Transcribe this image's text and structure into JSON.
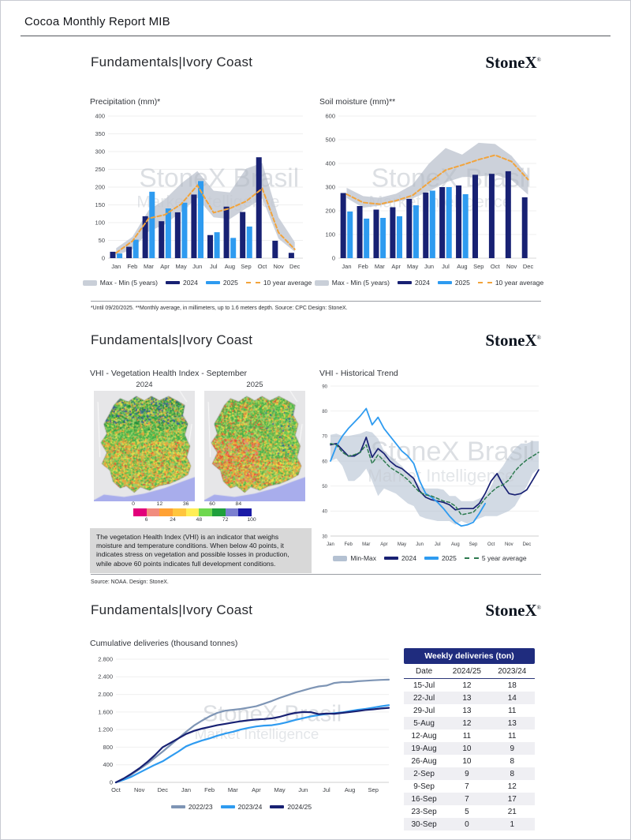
{
  "header": {
    "title": "Cocoa Monthly Report MIB"
  },
  "brand": {
    "logo": "StoneX",
    "reg": "®",
    "watermark1": "StoneX Brasil",
    "watermark2": "Market Intelligence"
  },
  "panel_title": "Fundamentals|Ivory Coast",
  "panel1": {
    "footnote": "*Until 09/20/2025. **Monthly average, in millimeters, up to 1.6 meters depth. Source: CPC  Design: StoneX."
  },
  "panel2": {
    "left_title": "VHI - Vegetation Health Index - September",
    "map_years": [
      "2024",
      "2025"
    ],
    "caption": "The vegetation Health Index (VHI) is an indicator that weighs moisture and temperature conditions. When below 40 points, it indicates stress on vegetation and possible losses in production, while above 60 points indicates full development conditions.",
    "source": "Source: NOAA. Design: StoneX.",
    "right_title": "VHI - Historical Trend"
  },
  "panel3": {
    "chart_title": "Cumulative deliveries (thousand tonnes)"
  },
  "colorbar": {
    "labels": [
      "0",
      "6",
      "12",
      "24",
      "36",
      "48",
      "60",
      "72",
      "84",
      "100"
    ],
    "colors": [
      "#e2007a",
      "#f18c7e",
      "#ffa133",
      "#ffc53d",
      "#ffee55",
      "#6fd84f",
      "#1fa03c",
      "#7b7fd0",
      "#1a1aa6"
    ]
  },
  "weekly_table": {
    "title": "Weekly deliveries (ton)",
    "columns": [
      "Date",
      "2024/25",
      "2023/24"
    ],
    "rows": [
      [
        "15-Jul",
        "12",
        "18"
      ],
      [
        "22-Jul",
        "13",
        "14"
      ],
      [
        "29-Jul",
        "13",
        "11"
      ],
      [
        "5-Aug",
        "12",
        "13"
      ],
      [
        "12-Aug",
        "11",
        "11"
      ],
      [
        "19-Aug",
        "10",
        "9"
      ],
      [
        "26-Aug",
        "10",
        "8"
      ],
      [
        "2-Sep",
        "9",
        "8"
      ],
      [
        "9-Sep",
        "7",
        "12"
      ],
      [
        "16-Sep",
        "7",
        "17"
      ],
      [
        "23-Sep",
        "5",
        "21"
      ],
      [
        "30-Sep",
        "0",
        "1"
      ]
    ]
  },
  "chart_data": [
    {
      "id": "precipitation",
      "type": "bar",
      "title": "Precipitation (mm)*",
      "categories": [
        "Jan",
        "Feb",
        "Mar",
        "Apr",
        "May",
        "Jun",
        "Jul",
        "Aug",
        "Sep",
        "Oct",
        "Nov",
        "Dec"
      ],
      "series": [
        {
          "name": "2024",
          "color": "#182173",
          "values": [
            18,
            32,
            118,
            104,
            129,
            179,
            65,
            145,
            130,
            284,
            49,
            15
          ]
        },
        {
          "name": "2025",
          "color": "#2e9bf0",
          "values": [
            13,
            52,
            187,
            140,
            156,
            217,
            73,
            57,
            89,
            null,
            null,
            null
          ]
        }
      ],
      "line": {
        "name": "10 year average",
        "color": "#f2a43c",
        "values": [
          15,
          48,
          112,
          122,
          152,
          205,
          128,
          140,
          160,
          196,
          72,
          25
        ]
      },
      "band": {
        "name": "Max - Min (5 years)",
        "color": "#c9cfd8",
        "upper": [
          28,
          60,
          135,
          165,
          210,
          245,
          190,
          185,
          252,
          268,
          115,
          45
        ],
        "lower": [
          8,
          25,
          75,
          95,
          130,
          170,
          115,
          110,
          140,
          168,
          55,
          18
        ]
      },
      "ylim": [
        0,
        400
      ],
      "yticks": [
        0,
        50,
        100,
        150,
        200,
        250,
        300,
        350,
        400
      ],
      "legend": [
        {
          "label": "Max - Min (5 years)",
          "swatch": "band",
          "color": "#c9cfd8"
        },
        {
          "label": "2024",
          "swatch": "line",
          "color": "#182173"
        },
        {
          "label": "2025",
          "swatch": "line",
          "color": "#2e9bf0"
        },
        {
          "label": "10 year average",
          "swatch": "dash",
          "color": "#f2a43c"
        }
      ]
    },
    {
      "id": "soil_moisture",
      "type": "bar",
      "title": "Soil moisture (mm)**",
      "categories": [
        "Jan",
        "Feb",
        "Mar",
        "Apr",
        "May",
        "Jun",
        "Jul",
        "Aug",
        "Sep",
        "Oct",
        "Nov",
        "Dec"
      ],
      "series": [
        {
          "name": "2024",
          "color": "#182173",
          "values": [
            275,
            220,
            205,
            215,
            250,
            277,
            300,
            307,
            352,
            356,
            367,
            257
          ]
        },
        {
          "name": "2025",
          "color": "#2e9bf0",
          "values": [
            197,
            167,
            170,
            177,
            223,
            285,
            300,
            270,
            null,
            null,
            null,
            null
          ]
        }
      ],
      "line": {
        "name": "10 year average",
        "color": "#f2a43c",
        "values": [
          270,
          235,
          228,
          243,
          265,
          320,
          372,
          393,
          416,
          435,
          408,
          332
        ]
      },
      "band": {
        "name": "Max - Min (5 years)",
        "color": "#c9cfd8",
        "upper": [
          297,
          262,
          255,
          272,
          310,
          400,
          465,
          437,
          487,
          482,
          432,
          347
        ],
        "lower": [
          254,
          213,
          222,
          238,
          252,
          282,
          320,
          342,
          345,
          352,
          330,
          268
        ]
      },
      "ylim": [
        0,
        600
      ],
      "yticks": [
        0,
        100,
        200,
        300,
        400,
        500,
        600
      ],
      "legend": [
        {
          "label": "Max - Min (5 years)",
          "swatch": "band",
          "color": "#c9cfd8"
        },
        {
          "label": "2024",
          "swatch": "line",
          "color": "#182173"
        },
        {
          "label": "2025",
          "swatch": "line",
          "color": "#2e9bf0"
        },
        {
          "label": "10 year average",
          "swatch": "dash",
          "color": "#f2a43c"
        }
      ]
    },
    {
      "id": "vhi_trend",
      "type": "line",
      "title": "VHI - Historical Trend",
      "x_labels": [
        "Jan",
        "Feb",
        "Mar",
        "Apr",
        "May",
        "Jun",
        "Jul",
        "Aug",
        "Sep",
        "Oct",
        "Nov",
        "Dec"
      ],
      "points_per_month": 3,
      "band": {
        "name": "Min-Max",
        "color": "#b4c1d2",
        "max": [
          70.5,
          71,
          70,
          70,
          70.5,
          71,
          72,
          71.5,
          69,
          64,
          62,
          60,
          58,
          55,
          53,
          50,
          49,
          49,
          49,
          48.5,
          46,
          46,
          44,
          44,
          44,
          45,
          46,
          50,
          55,
          58,
          62,
          65,
          67,
          67,
          68,
          68
        ],
        "min": [
          60,
          61,
          58,
          52,
          52,
          54,
          57,
          52,
          46,
          49,
          48,
          47,
          45,
          43,
          42,
          38,
          37,
          36.5,
          36,
          36,
          36,
          34.5,
          36,
          35,
          36,
          37,
          38,
          38,
          38,
          39,
          40,
          42,
          46,
          50,
          55,
          57
        ]
      },
      "series": [
        {
          "name": "2024",
          "color": "#182173",
          "width": 1.7,
          "dash": null,
          "values": [
            66.5,
            67,
            64.5,
            62,
            62,
            63.5,
            69.5,
            61.5,
            65,
            63,
            60,
            58,
            57,
            55,
            53,
            48,
            45.5,
            44.5,
            44,
            43.5,
            42.5,
            40.5,
            41,
            41,
            41,
            43,
            47,
            52,
            55,
            50.5,
            47,
            46.5,
            47,
            48.5,
            52.5,
            56.5
          ]
        },
        {
          "name": "2025",
          "color": "#2e9bf0",
          "width": 1.8,
          "dash": null,
          "values": [
            60,
            66,
            70,
            73,
            75.5,
            78,
            81,
            74.5,
            77.5,
            73,
            70,
            67,
            64,
            62,
            59,
            52,
            47,
            45.5,
            43.5,
            41,
            38,
            35.5,
            34,
            34.5,
            35.5,
            39,
            43,
            null,
            null,
            null,
            null,
            null,
            null,
            null,
            null,
            null
          ]
        },
        {
          "name": "5 year average",
          "color": "#2c7a4f",
          "width": 1.5,
          "dash": "4 3",
          "values": [
            67,
            66.5,
            63.5,
            62,
            62.5,
            63.5,
            66.5,
            59,
            62.5,
            60,
            57.5,
            56,
            54.5,
            52.5,
            50,
            47.5,
            46.5,
            46,
            45,
            44,
            43.5,
            42,
            38.5,
            39,
            39.5,
            42,
            45,
            47.5,
            49.5,
            50.5,
            52.5,
            56,
            58.5,
            60.5,
            62,
            63.5
          ]
        }
      ],
      "ylim": [
        30,
        90
      ],
      "yticks": [
        30,
        40,
        50,
        60,
        70,
        80,
        90
      ],
      "legend": [
        {
          "label": "Min-Max",
          "swatch": "band",
          "color": "#b4c1d2"
        },
        {
          "label": "2024",
          "swatch": "line",
          "color": "#182173"
        },
        {
          "label": "2025",
          "swatch": "line",
          "color": "#2e9bf0"
        },
        {
          "label": "5 year average",
          "swatch": "dash",
          "color": "#2c7a4f"
        }
      ]
    },
    {
      "id": "cumulative_deliveries",
      "type": "line",
      "title": "Cumulative deliveries (thousand tonnes)",
      "x_labels": [
        "Oct",
        "Nov",
        "Dec",
        "Jan",
        "Feb",
        "Mar",
        "Apr",
        "May",
        "Jun",
        "Jul",
        "Aug",
        "Sep"
      ],
      "points_per_month": 3,
      "band": null,
      "series": [
        {
          "name": "2022/23",
          "color": "#7e95b5",
          "width": 2.2,
          "dash": null,
          "values": [
            0,
            80,
            180,
            300,
            420,
            560,
            700,
            850,
            1000,
            1150,
            1290,
            1400,
            1500,
            1580,
            1630,
            1650,
            1670,
            1700,
            1730,
            1790,
            1850,
            1920,
            1980,
            2040,
            2090,
            2140,
            2180,
            2200,
            2260,
            2280,
            2280,
            2300,
            2310,
            2320,
            2330,
            2335
          ]
        },
        {
          "name": "2023/24",
          "color": "#2e9bf0",
          "width": 2.2,
          "dash": null,
          "values": [
            0,
            60,
            130,
            220,
            310,
            400,
            480,
            590,
            700,
            820,
            890,
            950,
            1000,
            1060,
            1110,
            1150,
            1200,
            1240,
            1270,
            1290,
            1300,
            1330,
            1370,
            1420,
            1460,
            1500,
            1530,
            1555,
            1570,
            1590,
            1620,
            1650,
            1670,
            1700,
            1730,
            1755
          ]
        },
        {
          "name": "2024/25",
          "color": "#182173",
          "width": 2.2,
          "dash": null,
          "values": [
            0,
            90,
            200,
            320,
            460,
            620,
            800,
            900,
            1000,
            1100,
            1170,
            1220,
            1260,
            1300,
            1330,
            1360,
            1390,
            1410,
            1430,
            1440,
            1455,
            1490,
            1540,
            1580,
            1600,
            1595,
            1550,
            1565,
            1560,
            1580,
            1600,
            1620,
            1645,
            1660,
            1680,
            1695
          ]
        }
      ],
      "ylim": [
        0,
        2800
      ],
      "yticks": [
        0,
        400,
        800,
        1200,
        1600,
        2000,
        2400,
        2800
      ],
      "ytick_labels": [
        "0",
        "400",
        "800",
        "1.200",
        "1.600",
        "2.000",
        "2.400",
        "2.800"
      ],
      "legend": [
        {
          "label": "2022/23",
          "swatch": "line",
          "color": "#7e95b5"
        },
        {
          "label": "2023/24",
          "swatch": "line",
          "color": "#2e9bf0"
        },
        {
          "label": "2024/25",
          "swatch": "line",
          "color": "#182173"
        }
      ]
    }
  ]
}
